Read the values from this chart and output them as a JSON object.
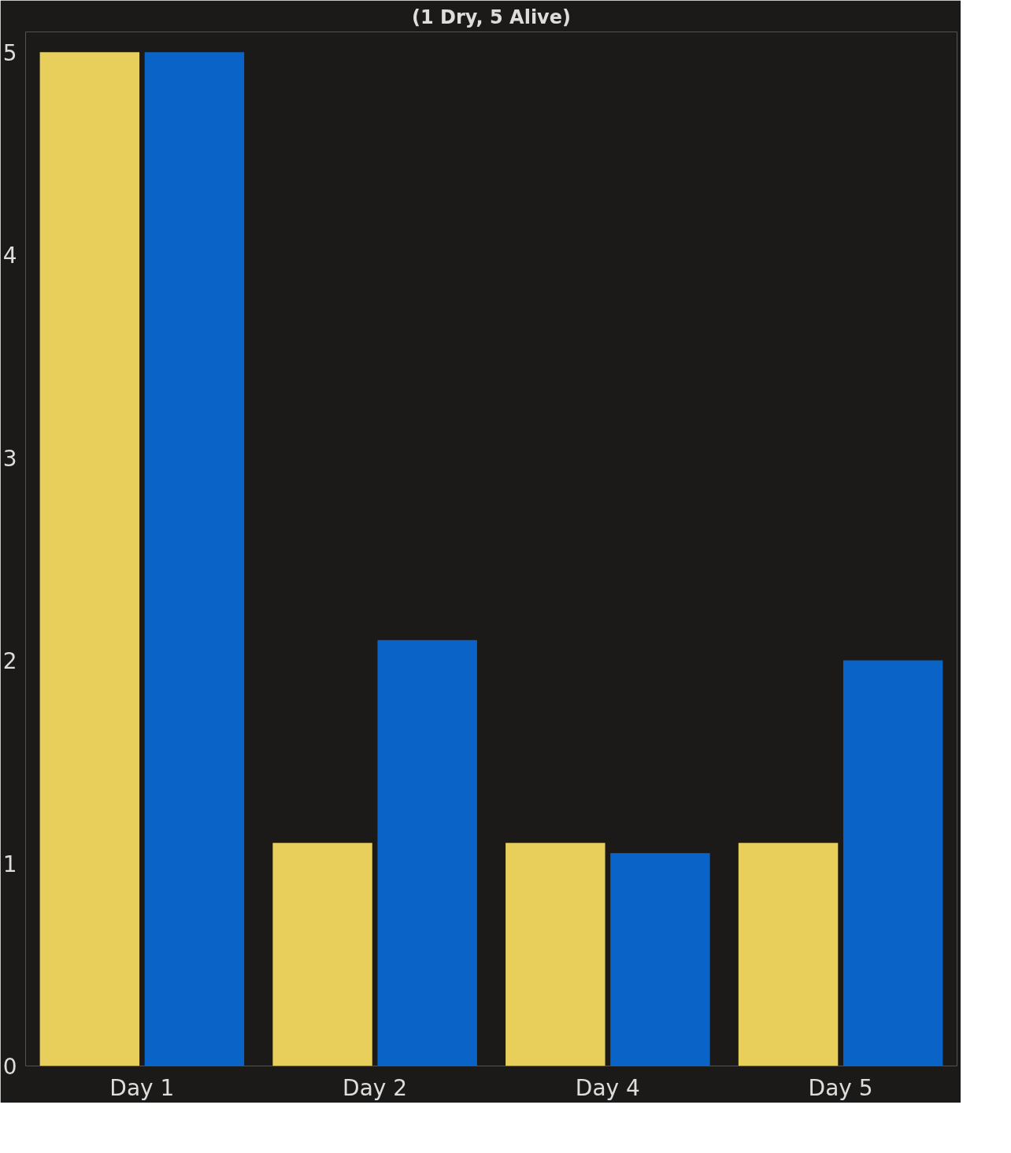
{
  "chart_data": {
    "type": "bar",
    "title": "(1 Dry, 5 Alive)",
    "categories": [
      "Day 1",
      "Day 2",
      "Day 4",
      "Day 5"
    ],
    "series": [
      {
        "color": "#e8cf5c",
        "values": [
          5,
          1.1,
          1.1,
          1.1
        ]
      },
      {
        "color": "#0a64c8",
        "values": [
          5,
          2.1,
          1.05,
          2.0
        ]
      }
    ],
    "ylim": [
      0,
      5.1
    ],
    "yticks": [
      0,
      1,
      2,
      3,
      4,
      5
    ],
    "grid": false
  }
}
